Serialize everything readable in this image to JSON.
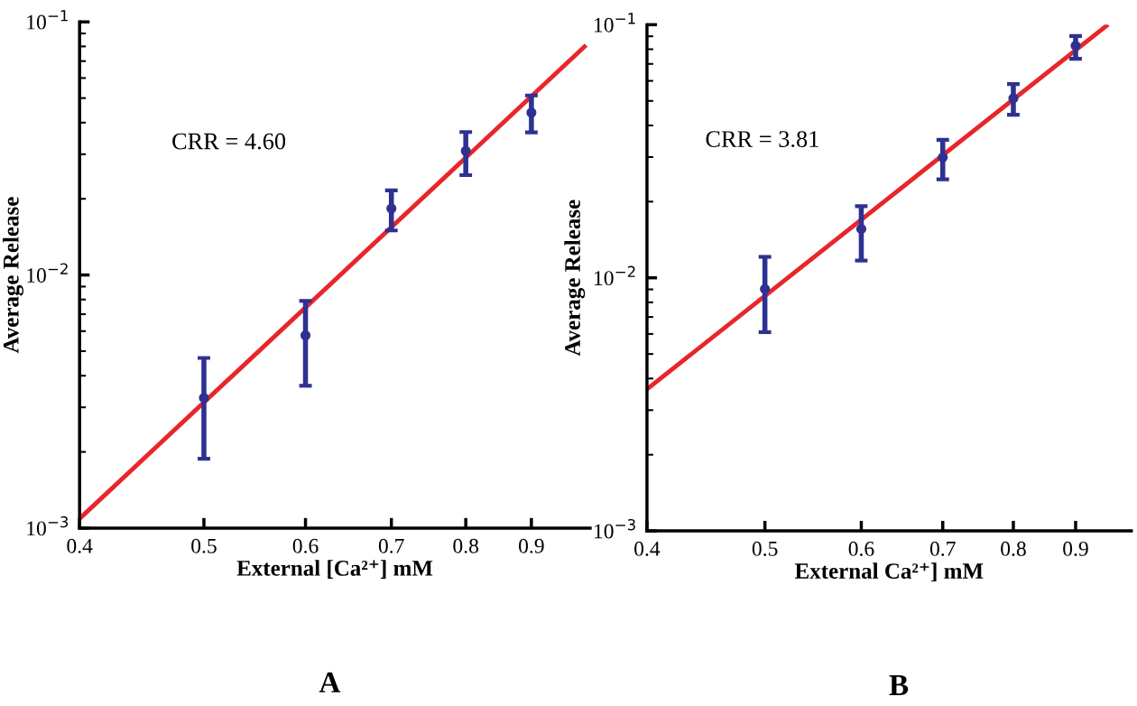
{
  "chart_data": [
    {
      "type": "scatter",
      "xlabel": "External [Ca²⁺] mM",
      "ylabel": "Average Release",
      "log": "xy",
      "xlim": [
        0.4,
        1.0
      ],
      "ylim": [
        0.001,
        0.1
      ],
      "xticks": [
        0.4,
        0.5,
        0.6,
        0.7,
        0.8,
        0.9
      ],
      "yticks": [
        {
          "value": 0.001,
          "label": "10$^{−3}$"
        },
        {
          "value": 0.01,
          "label": "10$^{−2}$"
        },
        {
          "value": 0.1,
          "label": "10$^{−1}$"
        }
      ],
      "grid": false,
      "legend": false,
      "annotations": [
        {
          "text": "CRR = 4.60"
        },
        {
          "text": "A"
        }
      ],
      "series": [
        {
          "color": "#2e3192",
          "marker": "circle",
          "x": [
            0.5,
            0.6,
            0.7,
            0.8,
            0.9
          ],
          "values": [
            0.00327,
            0.00577,
            0.0183,
            0.0309,
            0.0438
          ],
          "errors": [
            [
              0.00188,
              0.0047
            ],
            [
              0.00365,
              0.0079
            ],
            [
              0.015,
              0.0216
            ],
            [
              0.0248,
              0.0367
            ],
            [
              0.0366,
              0.0512
            ]
          ]
        },
        {
          "type": "line",
          "color": "#e8262a",
          "x": [
            0.4,
            0.99
          ],
          "values": [
            0.00109,
            0.0798
          ]
        }
      ]
    },
    {
      "type": "scatter",
      "xlabel": "External Ca²⁺] mM",
      "ylabel": "Average Release",
      "log": "xy",
      "xlim": [
        0.4,
        1.0
      ],
      "ylim": [
        0.001,
        0.1
      ],
      "xticks": [
        0.4,
        0.5,
        0.6,
        0.7,
        0.8,
        0.9
      ],
      "yticks": [
        {
          "value": 0.001,
          "label": "10$^{−3}$"
        },
        {
          "value": 0.01,
          "label": "10$^{−2}$"
        },
        {
          "value": 0.1,
          "label": "10$^{−1}$"
        }
      ],
      "grid": false,
      "legend": false,
      "annotations": [
        {
          "text": "CRR = 3.81"
        },
        {
          "text": "B"
        }
      ],
      "series": [
        {
          "color": "#2e3192",
          "marker": "circle",
          "x": [
            0.5,
            0.6,
            0.7,
            0.8,
            0.9
          ],
          "values": [
            0.00903,
            0.0156,
            0.0299,
            0.0512,
            0.0826
          ],
          "errors": [
            [
              0.0061,
              0.0121
            ],
            [
              0.0117,
              0.0192
            ],
            [
              0.0245,
              0.0351
            ],
            [
              0.0441,
              0.0583
            ],
            [
              0.0733,
              0.0903
            ]
          ]
        },
        {
          "type": "line",
          "color": "#e8262a",
          "x": [
            0.4,
            0.954
          ],
          "values": [
            0.00363,
            0.099
          ]
        }
      ]
    }
  ]
}
